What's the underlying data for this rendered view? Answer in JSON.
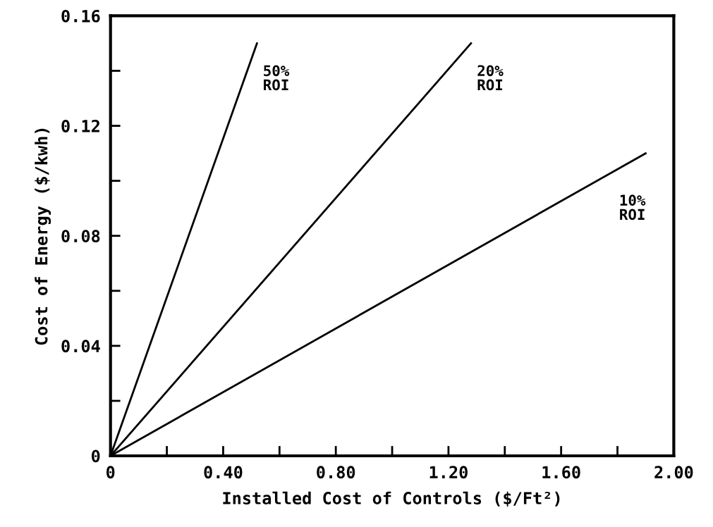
{
  "chart_data": {
    "type": "line",
    "xlabel": "Installed Cost of Controls ($/Ft²)",
    "ylabel": "Cost of Energy ($/kwh)",
    "series": [
      {
        "name": "50%\nROI",
        "color": "#000000",
        "x": [
          0,
          0.52
        ],
        "values": [
          0,
          0.15
        ]
      },
      {
        "name": "20%\nROI",
        "color": "#000000",
        "x": [
          0,
          1.28
        ],
        "values": [
          0,
          0.15
        ]
      },
      {
        "name": "10%\nROI",
        "color": "#000000",
        "x": [
          0,
          1.9
        ],
        "values": [
          0,
          0.11
        ]
      }
    ],
    "xlim": [
      0,
      2.0
    ],
    "ylim": [
      0,
      0.16
    ],
    "xticks": [
      {
        "value": 0,
        "label": "0"
      },
      {
        "value": 0.2,
        "label": null
      },
      {
        "value": 0.4,
        "label": "0.40"
      },
      {
        "value": 0.6,
        "label": null
      },
      {
        "value": 0.8,
        "label": "0.80"
      },
      {
        "value": 1.0,
        "label": null
      },
      {
        "value": 1.2,
        "label": "1.20"
      },
      {
        "value": 1.4,
        "label": null
      },
      {
        "value": 1.6,
        "label": "1.60"
      },
      {
        "value": 1.8,
        "label": null
      },
      {
        "value": 2.0,
        "label": "2.00"
      }
    ],
    "yticks": [
      {
        "value": 0,
        "label": "0"
      },
      {
        "value": 0.02,
        "label": null
      },
      {
        "value": 0.04,
        "label": "0.04"
      },
      {
        "value": 0.06,
        "label": null
      },
      {
        "value": 0.08,
        "label": "0.08"
      },
      {
        "value": 0.1,
        "label": null
      },
      {
        "value": 0.12,
        "label": "0.12"
      },
      {
        "value": 0.14,
        "label": null
      },
      {
        "value": 0.16,
        "label": "0.16"
      }
    ],
    "grid": false,
    "marker": "none",
    "line_style": "solid"
  }
}
